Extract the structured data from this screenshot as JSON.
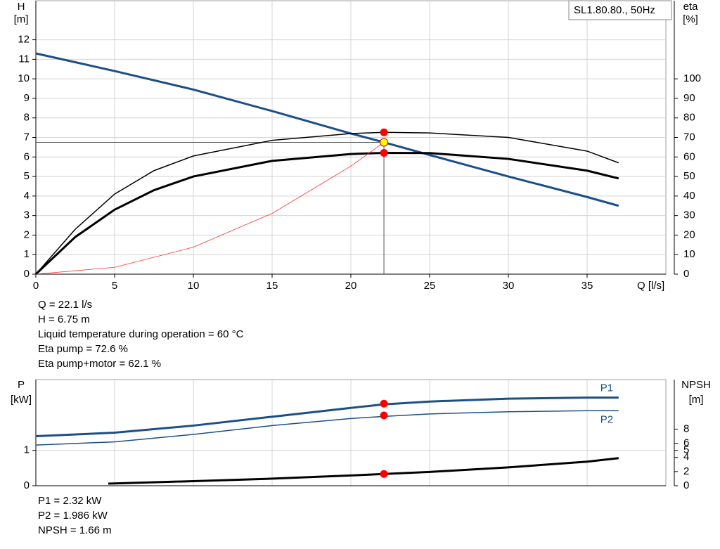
{
  "chart_data": [
    {
      "type": "line",
      "legend_box": "SL1.80.80., 50Hz",
      "y_label": [
        "H",
        "[m]"
      ],
      "y2_label": [
        "eta",
        "[%]"
      ],
      "x_label": "Q [l/s]",
      "xlim": [
        0,
        40
      ],
      "xticks": [
        0,
        5,
        10,
        15,
        20,
        25,
        30,
        35
      ],
      "ylim": [
        0,
        14
      ],
      "yticks": [
        0,
        1,
        2,
        3,
        4,
        5,
        6,
        7,
        8,
        9,
        10,
        11,
        12
      ],
      "y2lim": [
        0,
        140
      ],
      "y2ticks": [
        0,
        10,
        20,
        30,
        40,
        50,
        60,
        70,
        80,
        90,
        100
      ],
      "grid": true,
      "series": [
        {
          "color": "#1c4f87",
          "width": 3,
          "x": [
            0,
            5,
            10,
            15,
            20,
            22.1,
            25,
            30,
            35,
            37
          ],
          "values": [
            11.3,
            10.4,
            9.45,
            8.35,
            7.2,
            6.75,
            6.1,
            5.0,
            3.95,
            3.5
          ]
        },
        {
          "color": "#000000",
          "width": 1.5,
          "axis": "y2",
          "x": [
            0,
            2.5,
            5,
            7.5,
            10,
            15,
            20,
            22.1,
            25,
            30,
            35,
            37
          ],
          "values": [
            0,
            23,
            41,
            53,
            60.5,
            68.5,
            72,
            72.6,
            72.3,
            70,
            63,
            57
          ]
        },
        {
          "color": "#000000",
          "width": 3,
          "axis": "y2",
          "x": [
            0,
            2.5,
            5,
            7.5,
            10,
            15,
            20,
            22.1,
            25,
            30,
            35,
            37
          ],
          "values": [
            0,
            19,
            33,
            43,
            50,
            58,
            61.5,
            62.1,
            62,
            59,
            53,
            49
          ]
        },
        {
          "color": "#ff3030",
          "width": 0.8,
          "x": [
            0,
            5,
            10,
            15,
            20,
            22.1
          ],
          "values": [
            0,
            0.35,
            1.38,
            3.11,
            5.53,
            6.75
          ]
        }
      ],
      "points": [
        {
          "x": 22.1,
          "y": 7.26,
          "color": "#ff0000"
        },
        {
          "x": 22.1,
          "y": 6.21,
          "color": "#ff0000"
        },
        {
          "x": 22.1,
          "y": 6.75,
          "color": "#ffff00"
        }
      ],
      "notes": [
        "Q = 22.1 l/s",
        "H = 6.75 m",
        "Liquid temperature during operation = 60 °C",
        "Eta pump = 72.6 %",
        "Eta pump+motor = 62.1 %"
      ]
    },
    {
      "type": "line",
      "y_label": [
        "P",
        "[kW]"
      ],
      "y2_label": [
        "NPSH",
        "[m]"
      ],
      "xlim": [
        0,
        40
      ],
      "ylim": [
        0,
        3
      ],
      "yticks": [
        0,
        1
      ],
      "y2lim": [
        0,
        15
      ],
      "y2ticks": [
        0,
        2,
        4,
        5,
        6,
        8
      ],
      "grid": true,
      "series": [
        {
          "name": "P1",
          "color": "#1c4f87",
          "width": 3,
          "x": [
            0,
            5,
            10,
            15,
            20,
            22.1,
            25,
            30,
            35,
            37
          ],
          "values": [
            1.4,
            1.5,
            1.7,
            1.95,
            2.2,
            2.3,
            2.38,
            2.46,
            2.49,
            2.49
          ]
        },
        {
          "name": "P2",
          "color": "#1c4f87",
          "width": 1.5,
          "x": [
            0,
            5,
            10,
            15,
            20,
            22.1,
            25,
            30,
            35,
            37
          ],
          "values": [
            1.15,
            1.24,
            1.45,
            1.7,
            1.9,
            1.96,
            2.03,
            2.09,
            2.12,
            2.12
          ]
        },
        {
          "color": "#000000",
          "width": 3,
          "axis": "y2",
          "x": [
            4.6,
            10,
            15,
            20,
            22.1,
            25,
            30,
            35,
            37
          ],
          "values": [
            0.3,
            0.65,
            1.0,
            1.45,
            1.66,
            1.95,
            2.6,
            3.4,
            3.9
          ]
        }
      ],
      "points": [
        {
          "x": 22.1,
          "y": 2.32,
          "color": "#ff0000"
        },
        {
          "x": 22.1,
          "y": 1.986,
          "color": "#ff0000"
        },
        {
          "x": 22.1,
          "y": 1.66,
          "axis": "y2",
          "color": "#ff0000"
        }
      ],
      "notes": [
        "P1 = 2.32 kW",
        "P2 = 1.986 kW",
        "NPSH = 1.66 m"
      ]
    }
  ]
}
